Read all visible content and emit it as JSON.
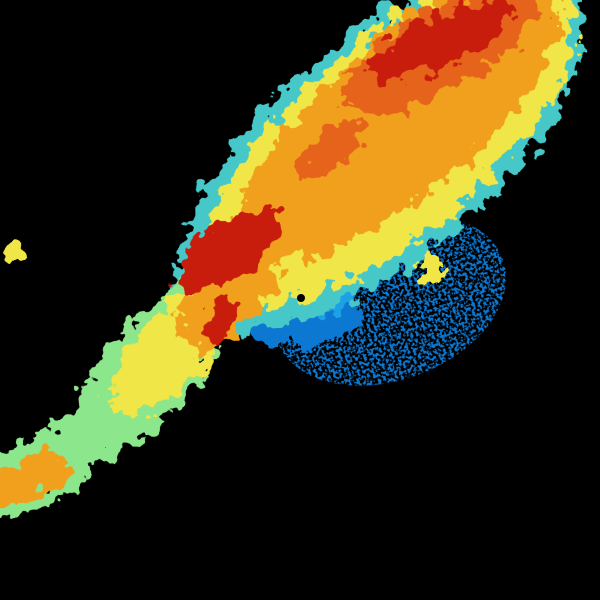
{
  "image": {
    "kind": "weather-radar-reflectivity",
    "background": "#000000",
    "palette": {
      "light_blue": "#1ea0e6",
      "blue": "#0a78d2",
      "cyan": "#46c8c8",
      "green": "#8ce68c",
      "yellow": "#f0e646",
      "orange": "#f0a01e",
      "dark_orange": "#e6641e",
      "red": "#c81e0a"
    }
  }
}
